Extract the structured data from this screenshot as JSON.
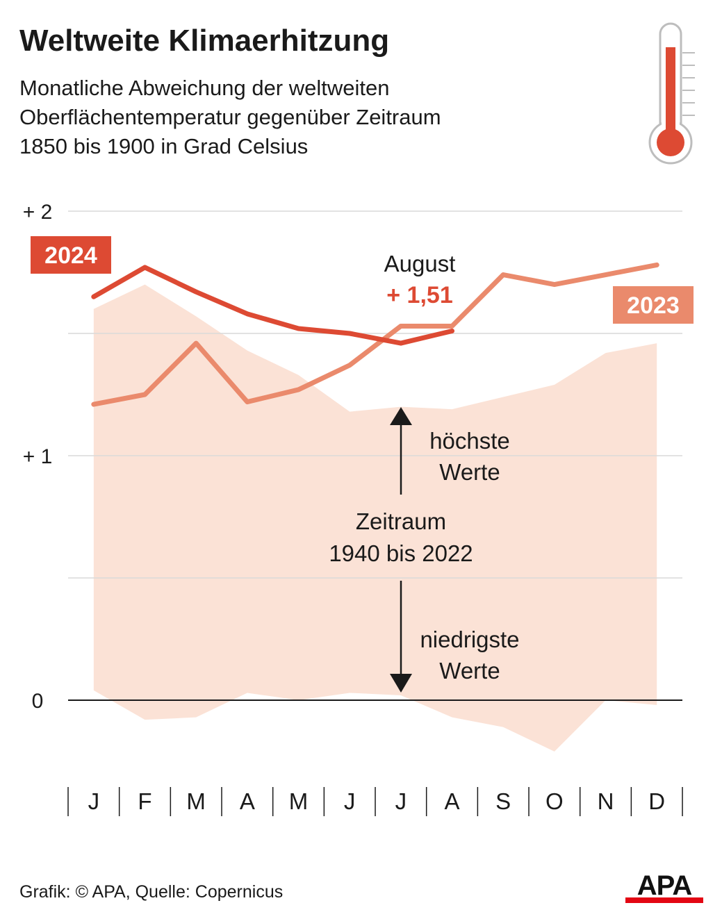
{
  "header": {
    "title": "Weltweite Klimaerhitzung",
    "subtitle_lines": [
      "Monatliche Abweichung der weltweiten",
      "Oberflächentemperatur gegenüber Zeitraum",
      "1850 bis 1900 in Grad Celsius"
    ],
    "icon": "thermometer-icon"
  },
  "chart_data": {
    "type": "line",
    "categories": [
      "J",
      "F",
      "M",
      "A",
      "M",
      "J",
      "J",
      "A",
      "S",
      "O",
      "N",
      "D"
    ],
    "ylim": [
      -0.25,
      2
    ],
    "y_ticks": [
      {
        "value": 2,
        "label": "+ 2"
      },
      {
        "value": 1.5,
        "label": ""
      },
      {
        "value": 1,
        "label": "+ 1"
      },
      {
        "value": 0.5,
        "label": ""
      },
      {
        "value": 0,
        "label": "0"
      }
    ],
    "series": [
      {
        "name": "2024",
        "color": "#dd4a33",
        "values": [
          1.65,
          1.77,
          1.67,
          1.58,
          1.52,
          1.5,
          1.46,
          1.51,
          null,
          null,
          null,
          null
        ]
      },
      {
        "name": "2023",
        "color": "#ea8a6c",
        "values": [
          1.21,
          1.25,
          1.46,
          1.22,
          1.27,
          1.37,
          1.53,
          1.53,
          1.74,
          1.7,
          1.74,
          1.78
        ]
      }
    ],
    "range_band": {
      "color": "#fbe2d6",
      "upper": [
        1.6,
        1.7,
        1.57,
        1.43,
        1.33,
        1.18,
        1.2,
        1.19,
        1.24,
        1.29,
        1.42,
        1.46
      ],
      "lower": [
        0.04,
        -0.08,
        -0.07,
        0.03,
        0.0,
        0.03,
        0.02,
        -0.07,
        -0.11,
        -0.21,
        0.0,
        -0.02
      ]
    },
    "annotations": {
      "august_label": "August",
      "august_value": "+ 1,51",
      "band_top_label": [
        "höchste",
        "Werte"
      ],
      "band_mid_label": [
        "Zeitraum",
        "1940 bis 2022"
      ],
      "band_bottom_label": [
        "niedrigste",
        "Werte"
      ]
    },
    "legend": [
      "2024",
      "2023"
    ]
  },
  "footer": {
    "credit": "Grafik: © APA, Quelle: Copernicus",
    "logo": "APA"
  }
}
